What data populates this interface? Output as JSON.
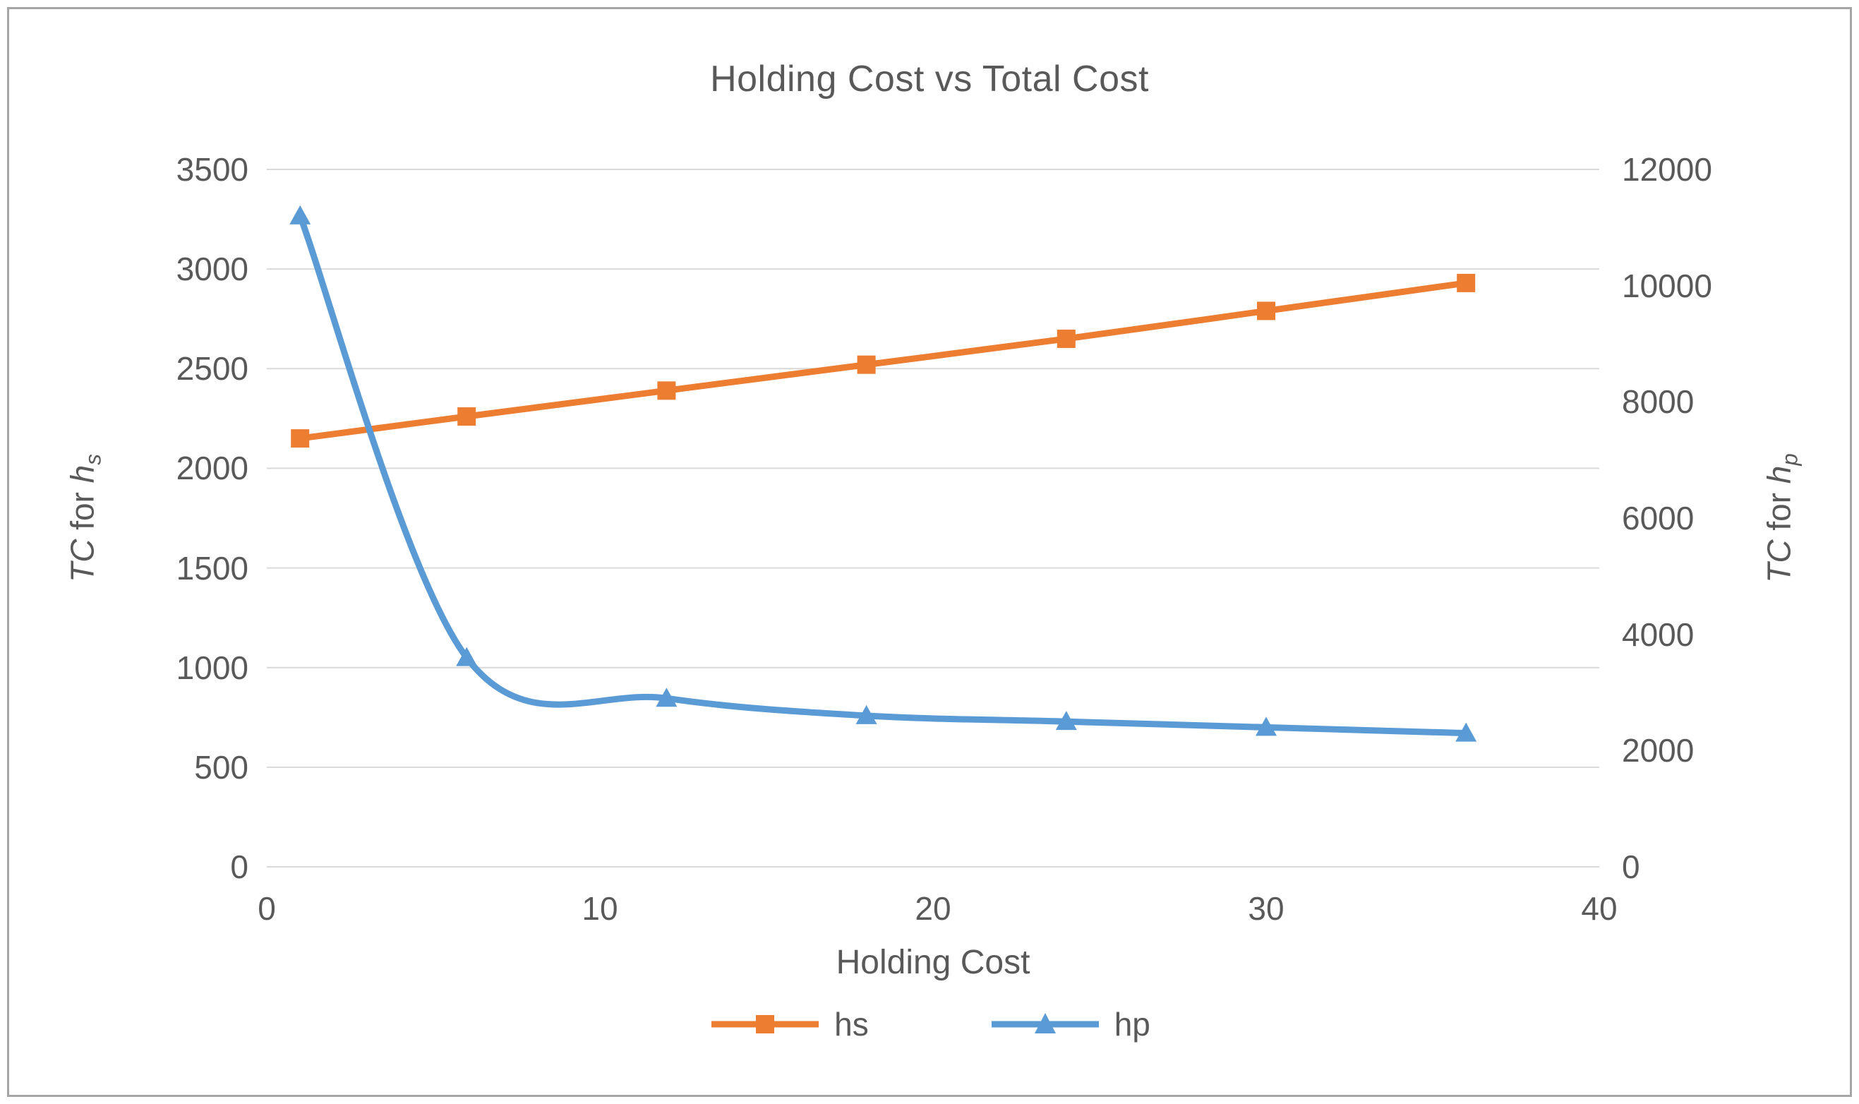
{
  "chart_data": {
    "type": "line",
    "title": "Holding Cost vs Total Cost",
    "xlabel": "Holding Cost",
    "ylabel_left": {
      "t_italic": "TC",
      "t_mid": " for ",
      "t_var": "h",
      "t_sub": "s"
    },
    "ylabel_right": {
      "t_italic": "TC",
      "t_mid": " for ",
      "t_var": "h",
      "t_sub": "p"
    },
    "x": [
      1,
      6,
      12,
      18,
      24,
      30,
      36
    ],
    "series": [
      {
        "name": "hs",
        "axis": "left",
        "color": "#ED7D31",
        "marker": "square",
        "smooth": true,
        "values": [
          2150,
          2260,
          2390,
          2520,
          2650,
          2790,
          2930
        ]
      },
      {
        "name": "hp",
        "axis": "right",
        "color": "#5B9BD5",
        "marker": "triangle",
        "smooth": true,
        "values": [
          11200,
          3600,
          2900,
          2600,
          2500,
          2400,
          2300
        ]
      }
    ],
    "axes": {
      "x": {
        "min": 0,
        "max": 40,
        "ticks": [
          0,
          10,
          20,
          30,
          40
        ]
      },
      "left": {
        "min": 0,
        "max": 3500,
        "ticks": [
          0,
          500,
          1000,
          1500,
          2000,
          2500,
          3000,
          3500
        ]
      },
      "right": {
        "min": 0,
        "max": 12000,
        "ticks": [
          0,
          2000,
          4000,
          6000,
          8000,
          10000,
          12000
        ]
      }
    },
    "grid": true,
    "legend_position": "bottom",
    "colors": {
      "grid": "#D9D9D9",
      "axis_text": "#595959",
      "frame_border": "#A6A6A6"
    }
  }
}
